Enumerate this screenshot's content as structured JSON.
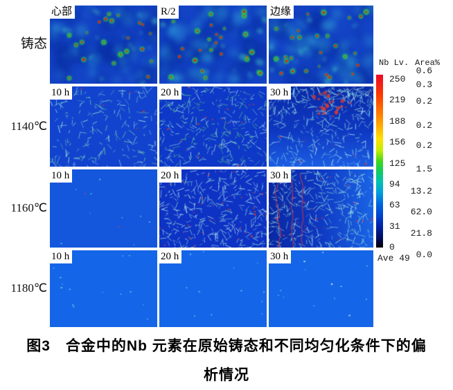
{
  "caption": {
    "line1": "图3　合金中的Nb 元素在原始铸态和不同均匀化条件下的偏",
    "line2": "析情况"
  },
  "legend": {
    "header_left": "Nb Lv.",
    "header_right": "Area%",
    "levels": [
      "250",
      "219",
      "188",
      "156",
      "125",
      "94",
      "63",
      "31",
      "0"
    ],
    "area_percents": [
      "0.6",
      "0.3",
      "0.2",
      "0.2",
      "0.2",
      "1.5",
      "13.2",
      "62.0",
      "21.8",
      "0.0"
    ],
    "average_label": "Ave 49",
    "gradient": [
      [
        0,
        "#ee0828"
      ],
      [
        0.12,
        "#fb3c00"
      ],
      [
        0.25,
        "#ff8c00"
      ],
      [
        0.37,
        "#ffe000"
      ],
      [
        0.44,
        "#c0ee00"
      ],
      [
        0.5,
        "#42d81c"
      ],
      [
        0.56,
        "#10cc60"
      ],
      [
        0.62,
        "#00c2b2"
      ],
      [
        0.68,
        "#00a0dc"
      ],
      [
        0.75,
        "#0064e0"
      ],
      [
        0.82,
        "#0040cc"
      ],
      [
        0.88,
        "#0022a4"
      ],
      [
        0.94,
        "#000e66"
      ],
      [
        1,
        "#000000"
      ]
    ]
  },
  "rows": [
    {
      "label": "铸态",
      "panels": [
        {
          "corner_label": "心部",
          "texture": {
            "kind": "cast",
            "seed": 11,
            "base": "#1444c6",
            "dark": "#0a2ea2",
            "light": "#2f9fd6",
            "bright": "#45cfc0",
            "halo": "#2fc84e",
            "core": "#d42816",
            "spots": 24
          }
        },
        {
          "corner_label": "R/2",
          "texture": {
            "kind": "cast",
            "seed": 23,
            "base": "#1444c6",
            "dark": "#0a2ea2",
            "light": "#2f9fd6",
            "bright": "#45cfc0",
            "halo": "#2fc84e",
            "core": "#d42816",
            "spots": 26
          }
        },
        {
          "corner_label": "边缘",
          "texture": {
            "kind": "cast",
            "seed": 37,
            "base": "#1444c6",
            "dark": "#0a2ea2",
            "light": "#2f9fd6",
            "bright": "#45cfc0",
            "halo": "#2fc84e",
            "core": "#d42816",
            "spots": 27
          }
        }
      ]
    },
    {
      "label": "1140℃",
      "panels": [
        {
          "corner_label": "10 h",
          "texture": {
            "kind": "streaks",
            "seed": 51,
            "base": "#1243ce",
            "redColor": "#d13a34",
            "streaks": {
              "count": 200,
              "colors": [
                "#93e2d4",
                "#b2eaea",
                "#6fd2a6"
              ]
            },
            "redSpecks": 6
          }
        },
        {
          "corner_label": "20 h",
          "texture": {
            "kind": "streaks",
            "seed": 62,
            "base": "#0e38c8",
            "redColor": "#d13a34",
            "streaks": {
              "count": 320,
              "colors": [
                "#b8ecee",
                "#8fe0d2",
                "#59d083"
              ]
            },
            "redSpecks": 20
          }
        },
        {
          "corner_label": "30 h",
          "texture": {
            "kind": "streaks",
            "seed": 73,
            "redColor": "#d13a34",
            "bg": {
              "dir": "v",
              "stops": [
                [
                  0,
                  "#0a2aa8"
                ],
                [
                  0.55,
                  "#0e38c2"
                ],
                [
                  1,
                  "#1c5ee4"
                ]
              ]
            },
            "streaks": {
              "count": 390,
              "colors": [
                "#c2f0f2",
                "#93e2da",
                "#7ad4ea"
              ],
              "topBias": 1
            },
            "redSpecks": 14,
            "redCluster": {
              "x": 0.58,
              "y": 0.2,
              "r": 0.2,
              "n": 30
            }
          }
        }
      ]
    },
    {
      "label": "1160℃",
      "panels": [
        {
          "corner_label": "10 h",
          "texture": {
            "kind": "plain",
            "seed": 81,
            "base": "#1457dd",
            "specks": 12,
            "speckColors": [
              "#d84a3a",
              "#74dcd4",
              "#9fe6f2"
            ]
          }
        },
        {
          "corner_label": "20 h",
          "texture": {
            "kind": "streaks",
            "seed": 92,
            "base": "#0d32c4",
            "redColor": "#d13a34",
            "streaks": {
              "count": 340,
              "colors": [
                "#aee8ea",
                "#84dcd0",
                "#c8f2f4"
              ]
            },
            "redSpecks": 34
          }
        },
        {
          "corner_label": "30 h",
          "texture": {
            "kind": "streaks",
            "seed": 103,
            "redColor": "#cc3a44",
            "bg": {
              "dir": "h",
              "stops": [
                [
                  0,
                  "#0a28a4"
                ],
                [
                  0.45,
                  "#0e36c0"
                ],
                [
                  1,
                  "#1a64e6"
                ]
              ]
            },
            "streaks": {
              "count": 350,
              "colors": [
                "#b6ecee",
                "#8be0d4",
                "#a4e8dc"
              ]
            },
            "redSpecks": 26,
            "redLines": 3
          }
        }
      ]
    },
    {
      "label": "1180℃",
      "panels": [
        {
          "corner_label": "10 h",
          "texture": {
            "kind": "plain",
            "seed": 111,
            "base": "#1565e8",
            "specks": 14,
            "speckColors": [
              "#8fd8f2",
              "#c2eff8",
              "#6fd8c8"
            ]
          }
        },
        {
          "corner_label": "20 h",
          "texture": {
            "kind": "plain",
            "seed": 122,
            "base": "#1565e8",
            "specks": 12,
            "speckColors": [
              "#8fd8f2",
              "#c2eff8"
            ]
          }
        },
        {
          "corner_label": "30 h",
          "texture": {
            "kind": "plain",
            "seed": 133,
            "base": "#1565e8",
            "specks": 13,
            "speckColors": [
              "#8fd8f2",
              "#c2eff8",
              "#6fd8c8"
            ]
          }
        }
      ]
    }
  ]
}
